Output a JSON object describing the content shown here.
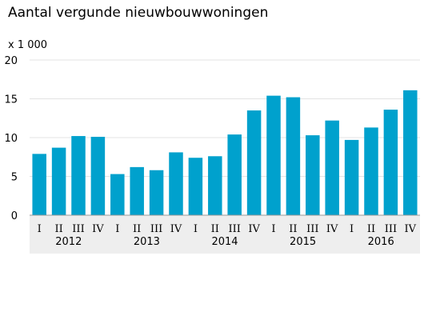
{
  "chart_data": {
    "type": "bar",
    "title": "Aantal vergunde nieuwbouwwoningen",
    "ylabel": "x 1 000",
    "xlabel": "",
    "ylim": [
      0,
      20
    ],
    "yticks": [
      0,
      5,
      10,
      15,
      20
    ],
    "grid": true,
    "bar_color": "#00a1cd",
    "categories": [
      "I",
      "II",
      "III",
      "IV",
      "I",
      "II",
      "III",
      "IV",
      "I",
      "II",
      "III",
      "IV",
      "I",
      "II",
      "III",
      "IV",
      "I",
      "II",
      "III",
      "IV"
    ],
    "years": [
      "2012",
      "2013",
      "2014",
      "2015",
      "2016"
    ],
    "values": [
      7.9,
      8.7,
      10.2,
      10.1,
      5.3,
      6.2,
      5.8,
      8.1,
      7.4,
      7.6,
      10.4,
      13.5,
      15.4,
      15.2,
      10.3,
      12.2,
      9.7,
      11.3,
      13.6,
      16.1
    ]
  }
}
